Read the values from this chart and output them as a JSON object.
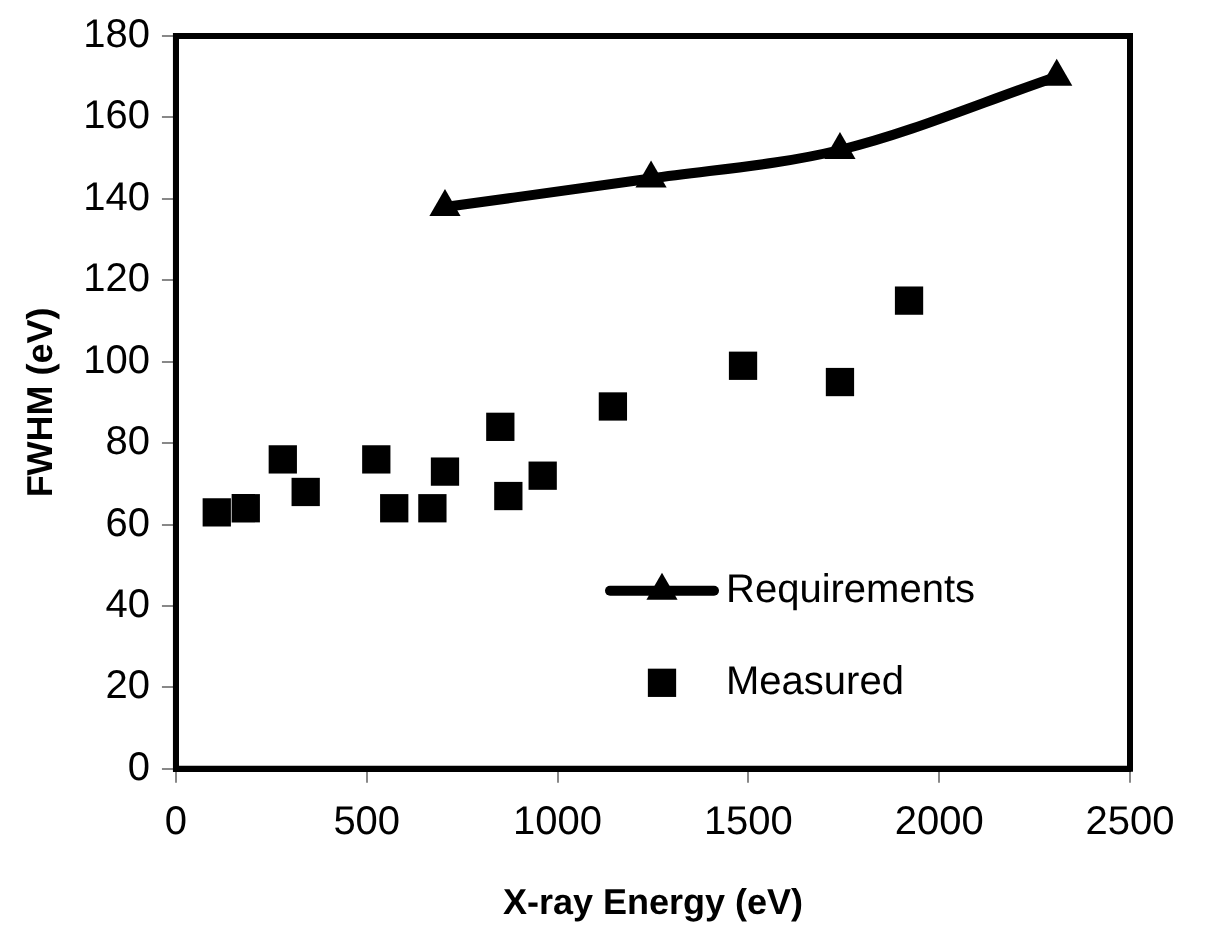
{
  "chart_data": {
    "type": "scatter",
    "xlabel": "X-ray Energy (eV)",
    "ylabel": "FWHM (eV)",
    "xlim": [
      0,
      2500
    ],
    "xticks": [
      0,
      500,
      1000,
      1500,
      2000,
      2500
    ],
    "ylim": [
      0,
      180
    ],
    "yticks": [
      0,
      20,
      40,
      60,
      80,
      100,
      120,
      140,
      160,
      180
    ],
    "grid": false,
    "legend": "bottom right",
    "series": [
      {
        "name": "Requirements",
        "type": "line",
        "marker": "triangle",
        "color": "#000000",
        "x": [
          705,
          1245,
          1740,
          2308
        ],
        "values": [
          138,
          145,
          152,
          170
        ]
      },
      {
        "name": "Measured",
        "marker": "square",
        "color": "#000000",
        "x": [
          107,
          183,
          280,
          340,
          525,
          572,
          672,
          705,
          850,
          871,
          961,
          1145,
          1486,
          1740,
          1921
        ],
        "values": [
          63,
          64,
          76,
          68,
          76,
          64,
          64,
          73,
          84,
          67,
          72,
          89,
          99,
          95,
          115
        ]
      }
    ]
  }
}
